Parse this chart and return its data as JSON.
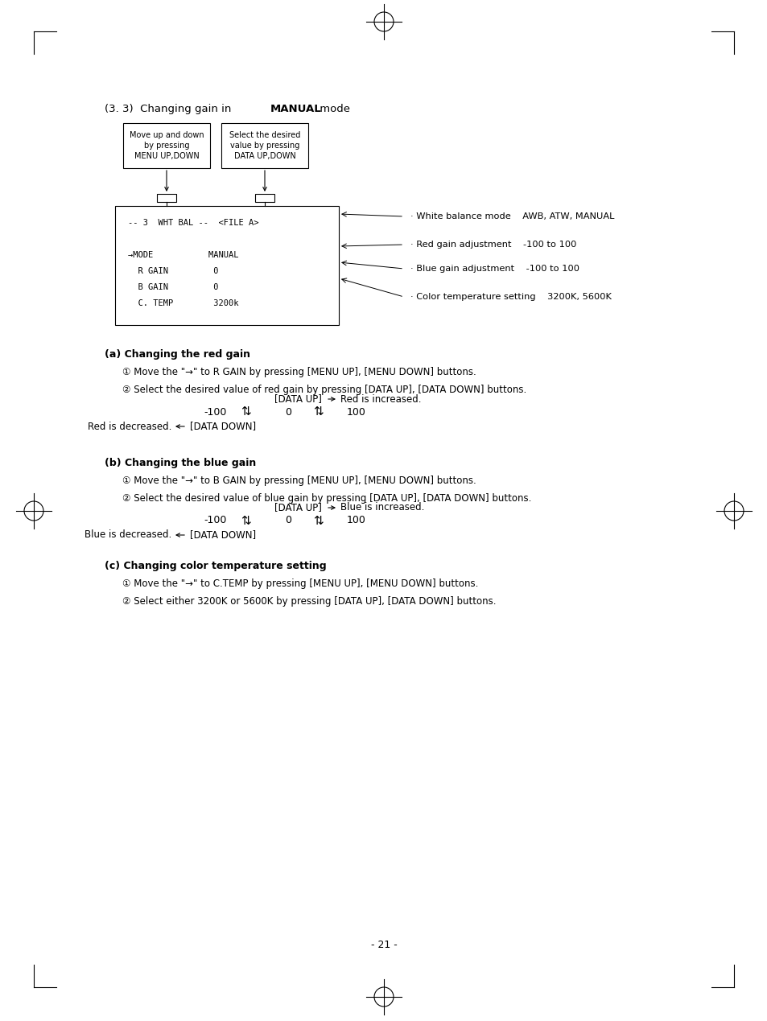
{
  "bg_color": "#ffffff",
  "page_number": "- 21 -",
  "section_title_normal": "(3. 3)  Changing gain in ",
  "section_title_bold": "MANUAL",
  "section_title_end": " mode",
  "box1_lines": [
    "Move up and down",
    "by pressing",
    "MENU UP,DOWN"
  ],
  "box2_lines": [
    "Select the desired",
    "value by pressing",
    "DATA UP,DOWN"
  ],
  "menu_line1": "-- 3  WHT BAL --  <FILE A>",
  "menu_line2": "→MODE           MANUAL",
  "menu_line3": "  R GAIN         0",
  "menu_line4": "  B GAIN         0",
  "menu_line5": "  C. TEMP        3200k",
  "ann1": "· White balance mode    AWB, ATW, MANUAL",
  "ann2": "· Red gain adjustment    -100 to 100",
  "ann3": "· Blue gain adjustment    -100 to 100",
  "ann4": "· Color temperature setting    3200K, 5600K",
  "sa_title": "(a) Changing the red gain",
  "sa_s1": "① Move the \"→\" to R GAIN by pressing [MENU UP], [MENU DOWN] buttons.",
  "sa_s2": "② Select the desired value of red gain by pressing [DATA UP], [DATA DOWN] buttons.",
  "sa_up_label": "[DATA UP]",
  "sa_up_desc": "Red is increased.",
  "sa_down_label": "[DATA DOWN]",
  "sa_down_desc": "Red is decreased.",
  "sb_title": "(b) Changing the blue gain",
  "sb_s1": "① Move the \"→\" to B GAIN by pressing [MENU UP], [MENU DOWN] buttons.",
  "sb_s2": "② Select the desired value of blue gain by pressing [DATA UP], [DATA DOWN] buttons.",
  "sb_up_label": "[DATA UP]",
  "sb_up_desc": "Blue is increased.",
  "sb_down_label": "[DATA DOWN]",
  "sb_down_desc": "Blue is decreased.",
  "sc_title": "(c) Changing color temperature setting",
  "sc_s1": "① Move the \"→\" to C.TEMP by pressing [MENU UP], [MENU DOWN] buttons.",
  "sc_s2": "② Select either 3200K or 5600K by pressing [DATA UP], [DATA DOWN] buttons."
}
